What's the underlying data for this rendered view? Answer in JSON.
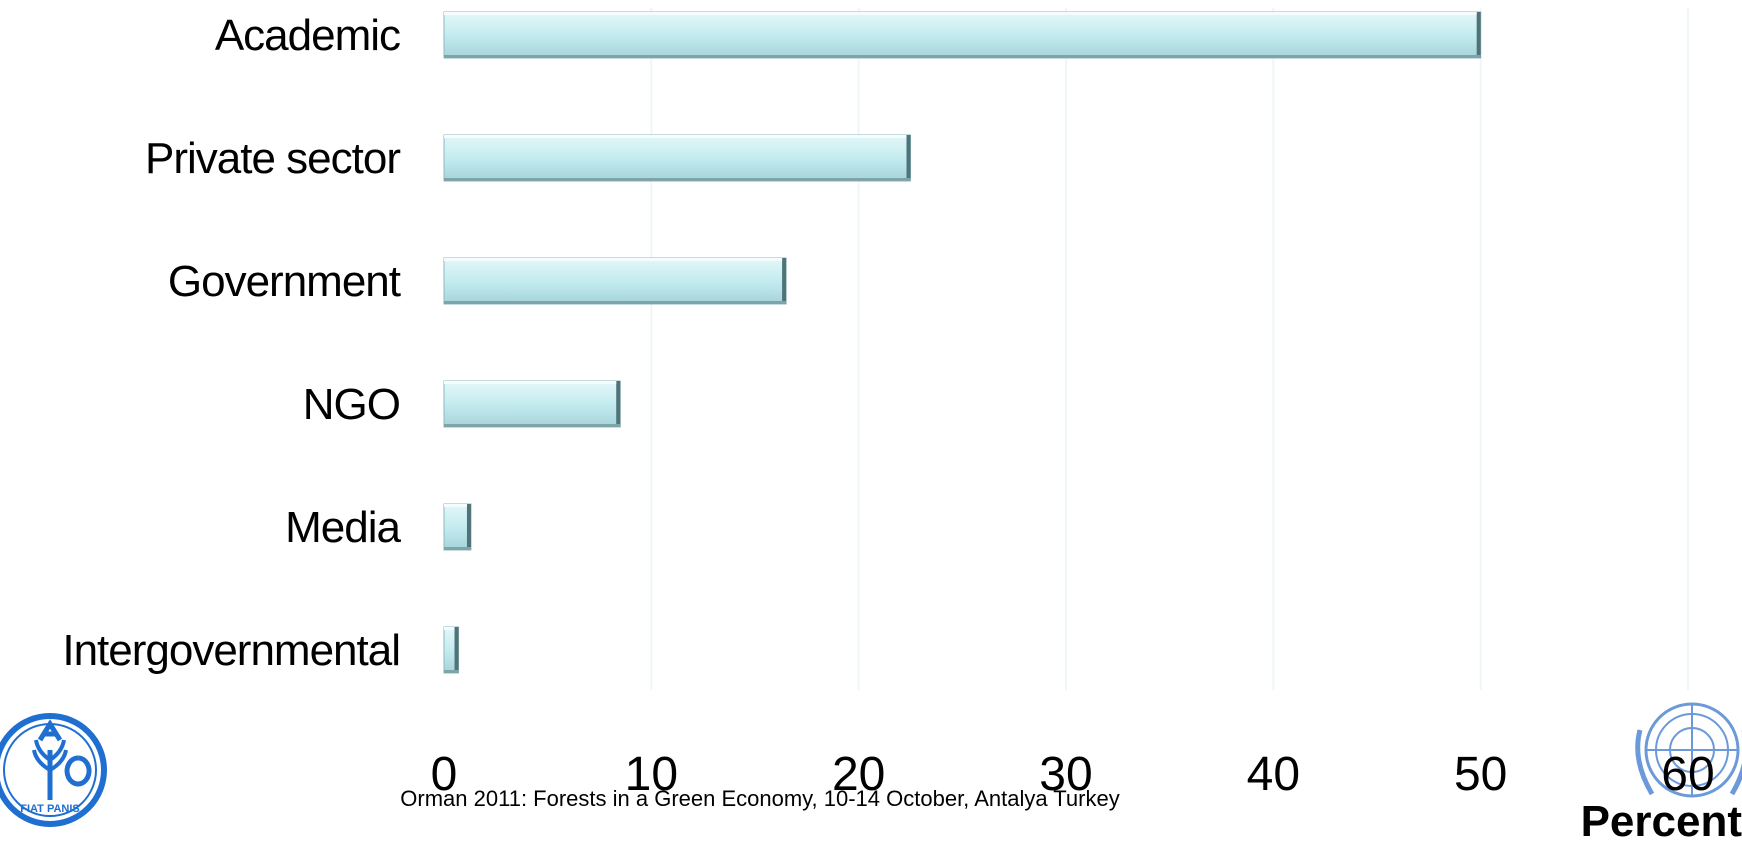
{
  "chart_data": {
    "type": "bar",
    "orientation": "horizontal",
    "categories": [
      "Academic",
      "Private sector",
      "Government",
      "NGO",
      "Media",
      "Intergovernmental"
    ],
    "values": [
      50,
      22.5,
      16.5,
      8.5,
      1.3,
      0.7
    ],
    "xlim": [
      0,
      60
    ],
    "xticks": [
      "0",
      "10",
      "20",
      "30",
      "40",
      "50",
      "60"
    ],
    "xlabel": "Percent",
    "ylabel": "",
    "title": "",
    "grid": true,
    "legend": "none",
    "bar_color": "#c4ecf0"
  },
  "footer": {
    "text": "Orman 2011: Forests in a Green Economy, 10-14 October, Antalya Turkey"
  },
  "logos": {
    "left": {
      "name": "fao-logo",
      "text": "FIAT PANIS",
      "color": "#1f6fd1"
    },
    "right": {
      "name": "un-emblem",
      "color": "#5b8fd6"
    }
  }
}
